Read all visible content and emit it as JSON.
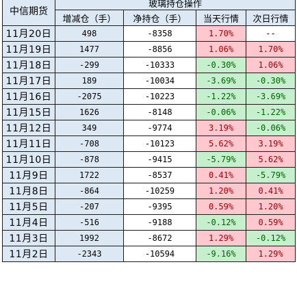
{
  "header": {
    "broker": "中信期货",
    "group_title": "玻璃持仓操作",
    "columns": [
      "增减仓（手）",
      "净持仓（手）",
      "当天行情",
      "次日行情"
    ]
  },
  "colors": {
    "header_bg": "#dce9f5",
    "up_bg": "#ffc7ce",
    "up_text": "#9c0006",
    "down_bg": "#c6efce",
    "down_text": "#006100"
  },
  "rows": [
    {
      "date": "11月20日",
      "change": "498",
      "net": "-8358",
      "today": "1.70%",
      "next": "--",
      "today_dir": "up",
      "next_dir": "none"
    },
    {
      "date": "11月19日",
      "change": "1477",
      "net": "-8856",
      "today": "1.06%",
      "next": "1.70%",
      "today_dir": "up",
      "next_dir": "up"
    },
    {
      "date": "11月18日",
      "change": "-299",
      "net": "-10333",
      "today": "-0.30%",
      "next": "1.06%",
      "today_dir": "down",
      "next_dir": "up"
    },
    {
      "date": "11月17日",
      "change": "189",
      "net": "-10034",
      "today": "-3.69%",
      "next": "-0.30%",
      "today_dir": "down",
      "next_dir": "down"
    },
    {
      "date": "11月16日",
      "change": "-2075",
      "net": "-10223",
      "today": "-1.22%",
      "next": "-3.69%",
      "today_dir": "down",
      "next_dir": "down"
    },
    {
      "date": "11月15日",
      "change": "1626",
      "net": "-8148",
      "today": "-0.06%",
      "next": "-1.22%",
      "today_dir": "down",
      "next_dir": "down"
    },
    {
      "date": "11月12日",
      "change": "349",
      "net": "-9774",
      "today": "3.19%",
      "next": "-0.06%",
      "today_dir": "up",
      "next_dir": "down"
    },
    {
      "date": "11月11日",
      "change": "-708",
      "net": "-10123",
      "today": "5.62%",
      "next": "3.19%",
      "today_dir": "up",
      "next_dir": "up"
    },
    {
      "date": "11月10日",
      "change": "-878",
      "net": "-9415",
      "today": "-5.79%",
      "next": "5.62%",
      "today_dir": "down",
      "next_dir": "up"
    },
    {
      "date": "11月9日",
      "change": "1722",
      "net": "-8537",
      "today": "0.41%",
      "next": "-5.79%",
      "today_dir": "up",
      "next_dir": "down"
    },
    {
      "date": "11月8日",
      "change": "-864",
      "net": "-10259",
      "today": "1.20%",
      "next": "0.41%",
      "today_dir": "up",
      "next_dir": "up"
    },
    {
      "date": "11月5日",
      "change": "-207",
      "net": "-9395",
      "today": "0.59%",
      "next": "1.20%",
      "today_dir": "up",
      "next_dir": "up"
    },
    {
      "date": "11月4日",
      "change": "-516",
      "net": "-9188",
      "today": "-0.12%",
      "next": "0.59%",
      "today_dir": "down",
      "next_dir": "up"
    },
    {
      "date": "11月3日",
      "change": "1992",
      "net": "-8672",
      "today": "1.29%",
      "next": "-0.12%",
      "today_dir": "up",
      "next_dir": "down"
    },
    {
      "date": "11月2日",
      "change": "-2343",
      "net": "-10594",
      "today": "-9.16%",
      "next": "1.29%",
      "today_dir": "down",
      "next_dir": "up"
    }
  ]
}
